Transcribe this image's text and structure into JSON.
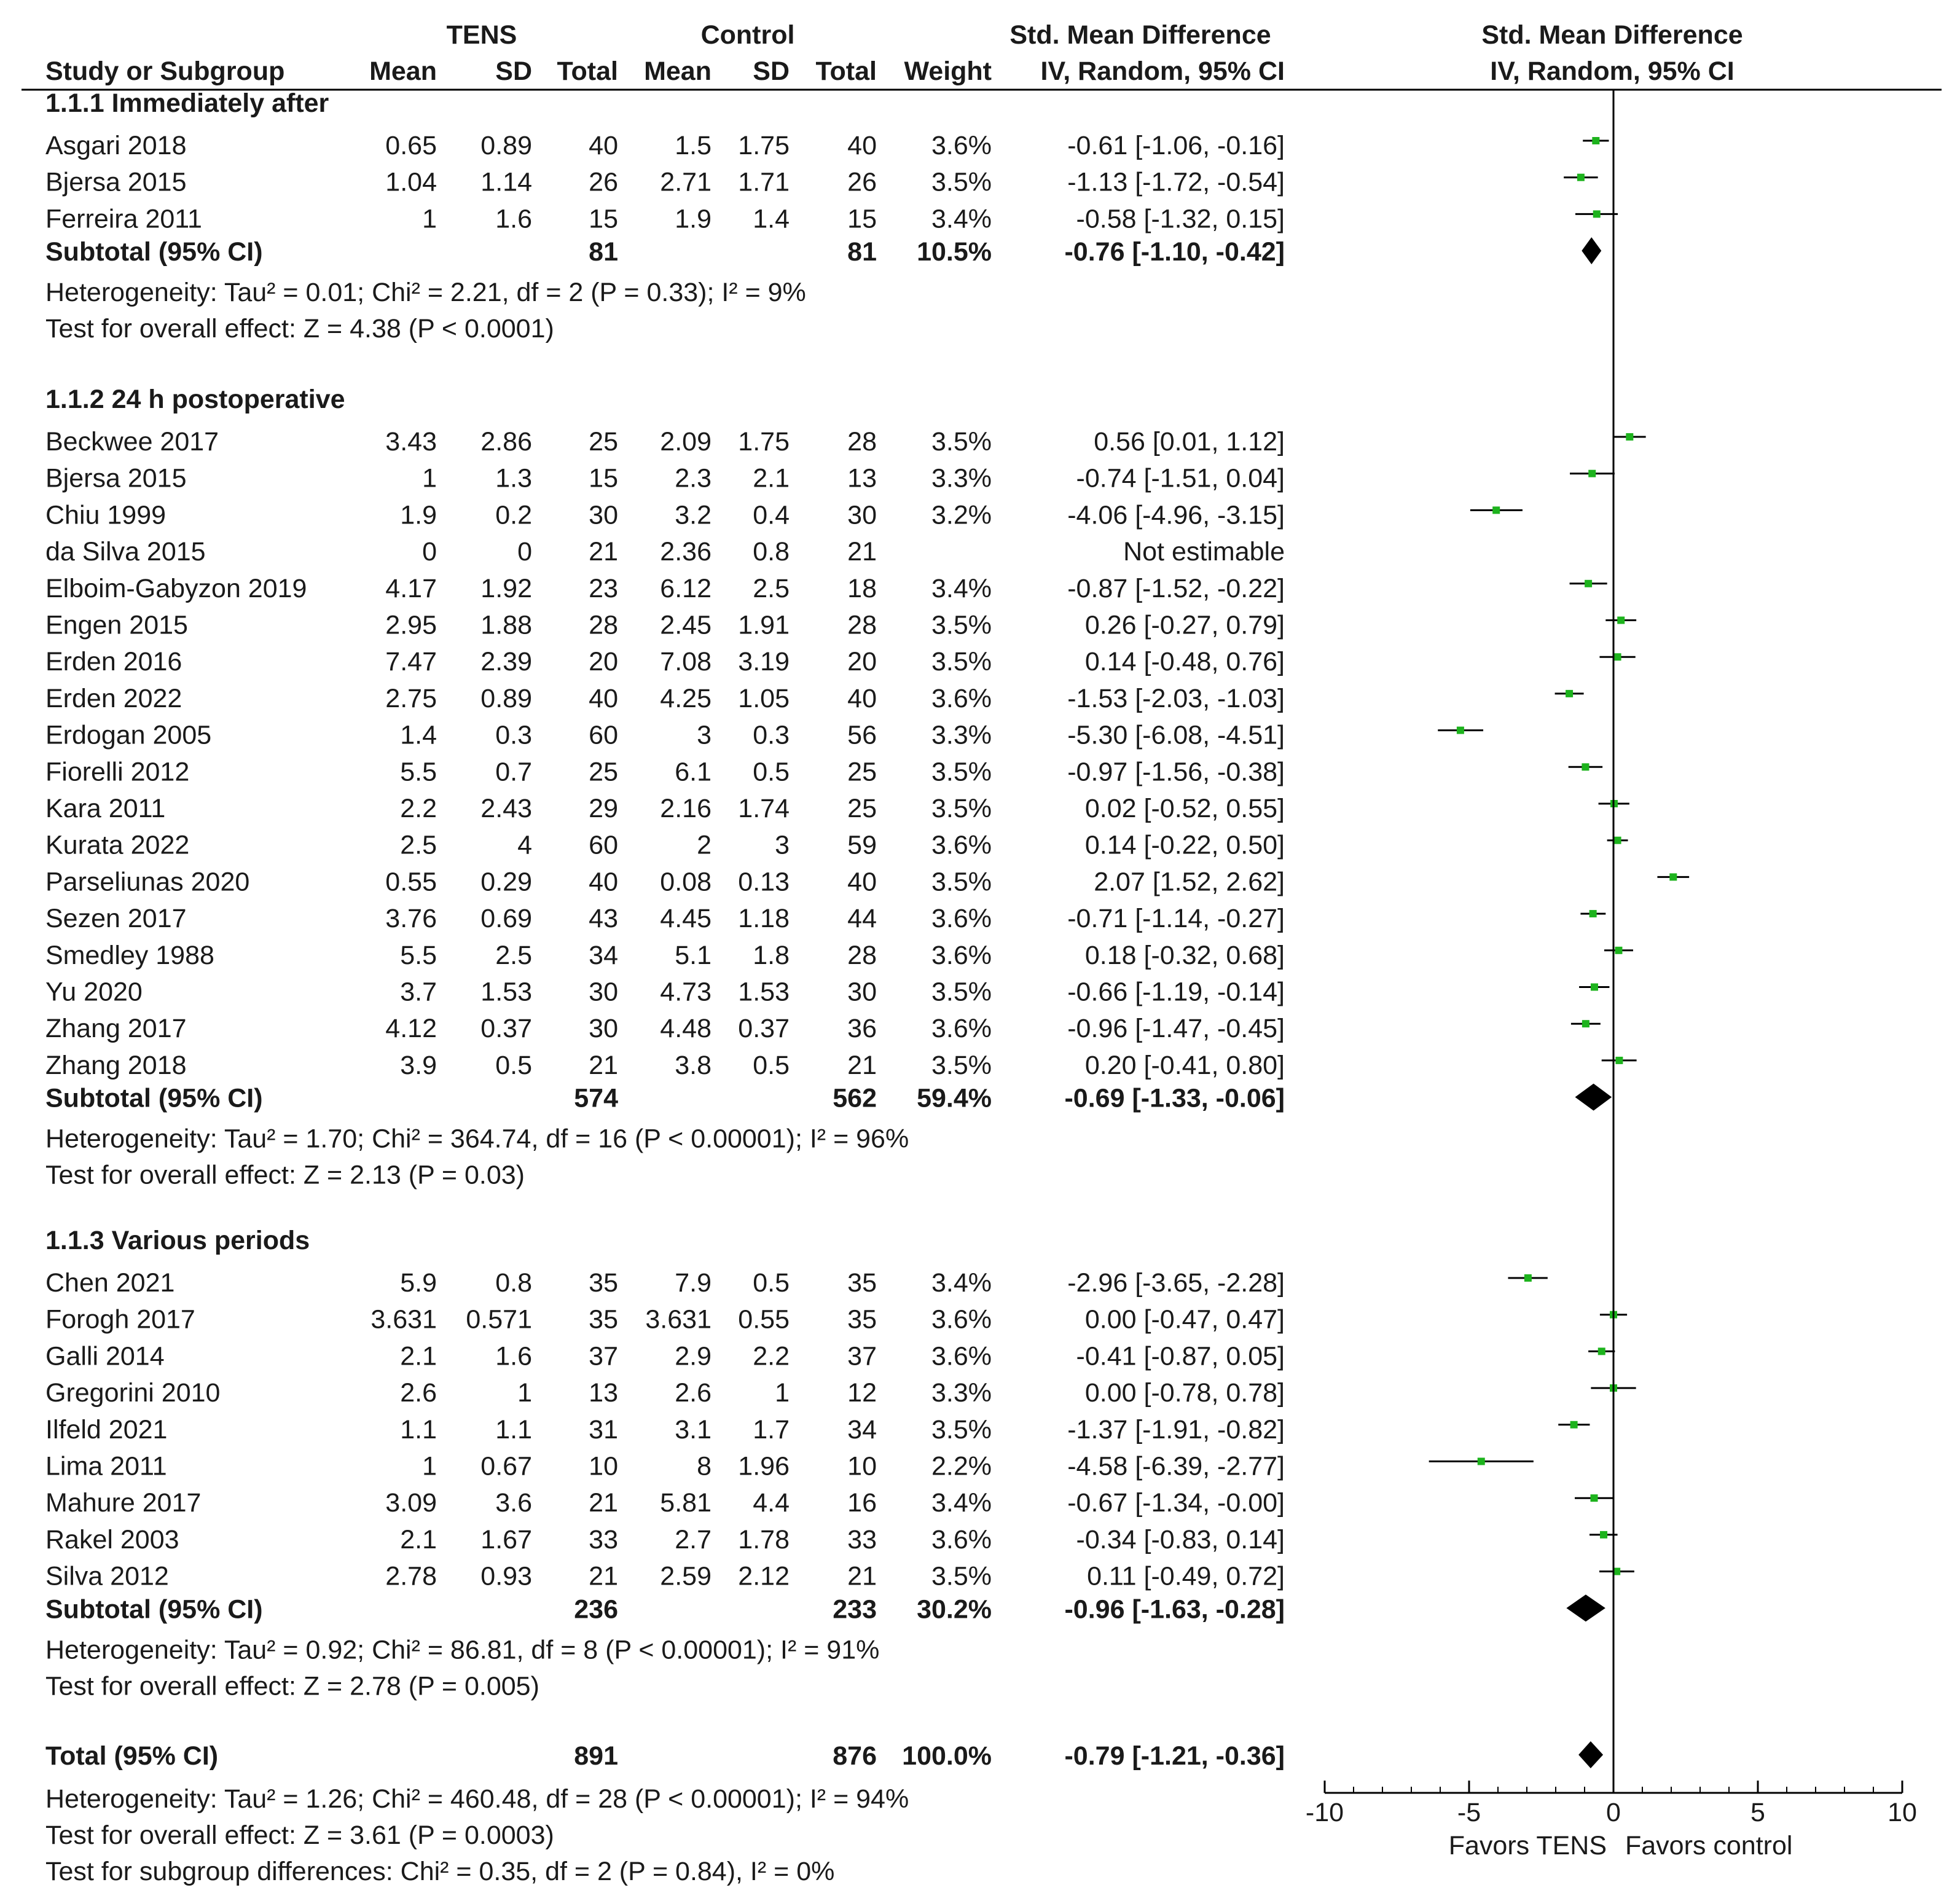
{
  "header": {
    "group1_label": "TENS",
    "group2_label": "Control",
    "effect_label": "Std. Mean Difference",
    "plot_label": "Std. Mean Difference",
    "col_study": "Study or Subgroup",
    "col_mean1": "Mean",
    "col_sd1": "SD",
    "col_total1": "Total",
    "col_mean2": "Mean",
    "col_sd2": "SD",
    "col_total2": "Total",
    "col_weight": "Weight",
    "col_ci": "IV, Random, 95% CI",
    "col_plot_ci": "IV, Random, 95% CI"
  },
  "colors": {
    "marker": "#1db31d",
    "diamond": "#000000",
    "line": "#000000"
  },
  "chart_data": {
    "type": "forest",
    "title": "Std. Mean Difference IV, Random, 95% CI",
    "xlim": [
      -10,
      10
    ],
    "xticks": [
      -10,
      -5,
      0,
      5,
      10
    ],
    "xtick_labels": [
      "-10",
      "-5",
      "0",
      "5",
      "10"
    ],
    "favors_left": "Favors TENS",
    "favors_right": "Favors control",
    "subgroups": [
      {
        "title": "1.1.1 Immediately after",
        "studies": [
          {
            "name": "Asgari 2018",
            "m1": "0.65",
            "sd1": "0.89",
            "n1": "40",
            "m2": "1.5",
            "sd2": "1.75",
            "n2": "40",
            "weight": "3.6%",
            "ci_text": "-0.61 [-1.06, -0.16]",
            "est": -0.61,
            "lo": -1.06,
            "hi": -0.16
          },
          {
            "name": "Bjersa 2015",
            "m1": "1.04",
            "sd1": "1.14",
            "n1": "26",
            "m2": "2.71",
            "sd2": "1.71",
            "n2": "26",
            "weight": "3.5%",
            "ci_text": "-1.13 [-1.72, -0.54]",
            "est": -1.13,
            "lo": -1.72,
            "hi": -0.54
          },
          {
            "name": "Ferreira 2011",
            "m1": "1",
            "sd1": "1.6",
            "n1": "15",
            "m2": "1.9",
            "sd2": "1.4",
            "n2": "15",
            "weight": "3.4%",
            "ci_text": "-0.58 [-1.32, 0.15]",
            "est": -0.58,
            "lo": -1.32,
            "hi": 0.15
          }
        ],
        "subtotal": {
          "label": "Subtotal (95% CI)",
          "n1": "81",
          "n2": "81",
          "weight": "10.5%",
          "ci_text": "-0.76 [-1.10, -0.42]",
          "est": -0.76,
          "lo": -1.1,
          "hi": -0.42
        },
        "heterogeneity": "Heterogeneity: Tau² = 0.01; Chi² = 2.21, df = 2 (P = 0.33); I² = 9%",
        "overall": "Test for overall effect: Z = 4.38 (P < 0.0001)"
      },
      {
        "title": "1.1.2 24 h postoperative",
        "studies": [
          {
            "name": "Beckwee 2017",
            "m1": "3.43",
            "sd1": "2.86",
            "n1": "25",
            "m2": "2.09",
            "sd2": "1.75",
            "n2": "28",
            "weight": "3.5%",
            "ci_text": "0.56 [0.01, 1.12]",
            "est": 0.56,
            "lo": 0.01,
            "hi": 1.12
          },
          {
            "name": "Bjersa 2015",
            "m1": "1",
            "sd1": "1.3",
            "n1": "15",
            "m2": "2.3",
            "sd2": "2.1",
            "n2": "13",
            "weight": "3.3%",
            "ci_text": "-0.74 [-1.51, 0.04]",
            "est": -0.74,
            "lo": -1.51,
            "hi": 0.04
          },
          {
            "name": "Chiu 1999",
            "m1": "1.9",
            "sd1": "0.2",
            "n1": "30",
            "m2": "3.2",
            "sd2": "0.4",
            "n2": "30",
            "weight": "3.2%",
            "ci_text": "-4.06 [-4.96, -3.15]",
            "est": -4.06,
            "lo": -4.96,
            "hi": -3.15
          },
          {
            "name": "da Silva 2015",
            "m1": "0",
            "sd1": "0",
            "n1": "21",
            "m2": "2.36",
            "sd2": "0.8",
            "n2": "21",
            "weight": "",
            "ci_text": "Not estimable",
            "est": null,
            "lo": null,
            "hi": null
          },
          {
            "name": "Elboim-Gabyzon 2019",
            "m1": "4.17",
            "sd1": "1.92",
            "n1": "23",
            "m2": "6.12",
            "sd2": "2.5",
            "n2": "18",
            "weight": "3.4%",
            "ci_text": "-0.87 [-1.52, -0.22]",
            "est": -0.87,
            "lo": -1.52,
            "hi": -0.22
          },
          {
            "name": "Engen 2015",
            "m1": "2.95",
            "sd1": "1.88",
            "n1": "28",
            "m2": "2.45",
            "sd2": "1.91",
            "n2": "28",
            "weight": "3.5%",
            "ci_text": "0.26 [-0.27, 0.79]",
            "est": 0.26,
            "lo": -0.27,
            "hi": 0.79
          },
          {
            "name": "Erden 2016",
            "m1": "7.47",
            "sd1": "2.39",
            "n1": "20",
            "m2": "7.08",
            "sd2": "3.19",
            "n2": "20",
            "weight": "3.5%",
            "ci_text": "0.14 [-0.48, 0.76]",
            "est": 0.14,
            "lo": -0.48,
            "hi": 0.76
          },
          {
            "name": "Erden 2022",
            "m1": "2.75",
            "sd1": "0.89",
            "n1": "40",
            "m2": "4.25",
            "sd2": "1.05",
            "n2": "40",
            "weight": "3.6%",
            "ci_text": "-1.53 [-2.03, -1.03]",
            "est": -1.53,
            "lo": -2.03,
            "hi": -1.03
          },
          {
            "name": "Erdogan 2005",
            "m1": "1.4",
            "sd1": "0.3",
            "n1": "60",
            "m2": "3",
            "sd2": "0.3",
            "n2": "56",
            "weight": "3.3%",
            "ci_text": "-5.30 [-6.08, -4.51]",
            "est": -5.3,
            "lo": -6.08,
            "hi": -4.51
          },
          {
            "name": "Fiorelli 2012",
            "m1": "5.5",
            "sd1": "0.7",
            "n1": "25",
            "m2": "6.1",
            "sd2": "0.5",
            "n2": "25",
            "weight": "3.5%",
            "ci_text": "-0.97 [-1.56, -0.38]",
            "est": -0.97,
            "lo": -1.56,
            "hi": -0.38
          },
          {
            "name": "Kara 2011",
            "m1": "2.2",
            "sd1": "2.43",
            "n1": "29",
            "m2": "2.16",
            "sd2": "1.74",
            "n2": "25",
            "weight": "3.5%",
            "ci_text": "0.02 [-0.52, 0.55]",
            "est": 0.02,
            "lo": -0.52,
            "hi": 0.55
          },
          {
            "name": "Kurata 2022",
            "m1": "2.5",
            "sd1": "4",
            "n1": "60",
            "m2": "2",
            "sd2": "3",
            "n2": "59",
            "weight": "3.6%",
            "ci_text": "0.14 [-0.22, 0.50]",
            "est": 0.14,
            "lo": -0.22,
            "hi": 0.5
          },
          {
            "name": "Parseliunas 2020",
            "m1": "0.55",
            "sd1": "0.29",
            "n1": "40",
            "m2": "0.08",
            "sd2": "0.13",
            "n2": "40",
            "weight": "3.5%",
            "ci_text": "2.07 [1.52, 2.62]",
            "est": 2.07,
            "lo": 1.52,
            "hi": 2.62
          },
          {
            "name": "Sezen 2017",
            "m1": "3.76",
            "sd1": "0.69",
            "n1": "43",
            "m2": "4.45",
            "sd2": "1.18",
            "n2": "44",
            "weight": "3.6%",
            "ci_text": "-0.71 [-1.14, -0.27]",
            "est": -0.71,
            "lo": -1.14,
            "hi": -0.27
          },
          {
            "name": "Smedley 1988",
            "m1": "5.5",
            "sd1": "2.5",
            "n1": "34",
            "m2": "5.1",
            "sd2": "1.8",
            "n2": "28",
            "weight": "3.6%",
            "ci_text": "0.18 [-0.32, 0.68]",
            "est": 0.18,
            "lo": -0.32,
            "hi": 0.68
          },
          {
            "name": "Yu 2020",
            "m1": "3.7",
            "sd1": "1.53",
            "n1": "30",
            "m2": "4.73",
            "sd2": "1.53",
            "n2": "30",
            "weight": "3.5%",
            "ci_text": "-0.66 [-1.19, -0.14]",
            "est": -0.66,
            "lo": -1.19,
            "hi": -0.14
          },
          {
            "name": "Zhang 2017",
            "m1": "4.12",
            "sd1": "0.37",
            "n1": "30",
            "m2": "4.48",
            "sd2": "0.37",
            "n2": "36",
            "weight": "3.6%",
            "ci_text": "-0.96 [-1.47, -0.45]",
            "est": -0.96,
            "lo": -1.47,
            "hi": -0.45
          },
          {
            "name": "Zhang 2018",
            "m1": "3.9",
            "sd1": "0.5",
            "n1": "21",
            "m2": "3.8",
            "sd2": "0.5",
            "n2": "21",
            "weight": "3.5%",
            "ci_text": "0.20 [-0.41, 0.80]",
            "est": 0.2,
            "lo": -0.41,
            "hi": 0.8
          }
        ],
        "subtotal": {
          "label": "Subtotal (95% CI)",
          "n1": "574",
          "n2": "562",
          "weight": "59.4%",
          "ci_text": "-0.69 [-1.33, -0.06]",
          "est": -0.69,
          "lo": -1.33,
          "hi": -0.06
        },
        "heterogeneity": "Heterogeneity: Tau² = 1.70; Chi² = 364.74, df = 16 (P < 0.00001); I² = 96%",
        "overall": "Test for overall effect: Z = 2.13 (P = 0.03)"
      },
      {
        "title": "1.1.3 Various periods",
        "studies": [
          {
            "name": "Chen 2021",
            "m1": "5.9",
            "sd1": "0.8",
            "n1": "35",
            "m2": "7.9",
            "sd2": "0.5",
            "n2": "35",
            "weight": "3.4%",
            "ci_text": "-2.96 [-3.65, -2.28]",
            "est": -2.96,
            "lo": -3.65,
            "hi": -2.28
          },
          {
            "name": "Forogh 2017",
            "m1": "3.631",
            "sd1": "0.571",
            "n1": "35",
            "m2": "3.631",
            "sd2": "0.55",
            "n2": "35",
            "weight": "3.6%",
            "ci_text": "0.00 [-0.47, 0.47]",
            "est": 0.0,
            "lo": -0.47,
            "hi": 0.47
          },
          {
            "name": "Galli 2014",
            "m1": "2.1",
            "sd1": "1.6",
            "n1": "37",
            "m2": "2.9",
            "sd2": "2.2",
            "n2": "37",
            "weight": "3.6%",
            "ci_text": "-0.41 [-0.87, 0.05]",
            "est": -0.41,
            "lo": -0.87,
            "hi": 0.05
          },
          {
            "name": "Gregorini 2010",
            "m1": "2.6",
            "sd1": "1",
            "n1": "13",
            "m2": "2.6",
            "sd2": "1",
            "n2": "12",
            "weight": "3.3%",
            "ci_text": "0.00 [-0.78, 0.78]",
            "est": 0.0,
            "lo": -0.78,
            "hi": 0.78
          },
          {
            "name": "Ilfeld 2021",
            "m1": "1.1",
            "sd1": "1.1",
            "n1": "31",
            "m2": "3.1",
            "sd2": "1.7",
            "n2": "34",
            "weight": "3.5%",
            "ci_text": "-1.37 [-1.91, -0.82]",
            "est": -1.37,
            "lo": -1.91,
            "hi": -0.82
          },
          {
            "name": "Lima 2011",
            "m1": "1",
            "sd1": "0.67",
            "n1": "10",
            "m2": "8",
            "sd2": "1.96",
            "n2": "10",
            "weight": "2.2%",
            "ci_text": "-4.58 [-6.39, -2.77]",
            "est": -4.58,
            "lo": -6.39,
            "hi": -2.77
          },
          {
            "name": "Mahure 2017",
            "m1": "3.09",
            "sd1": "3.6",
            "n1": "21",
            "m2": "5.81",
            "sd2": "4.4",
            "n2": "16",
            "weight": "3.4%",
            "ci_text": "-0.67 [-1.34, -0.00]",
            "est": -0.67,
            "lo": -1.34,
            "hi": -0.0
          },
          {
            "name": "Rakel 2003",
            "m1": "2.1",
            "sd1": "1.67",
            "n1": "33",
            "m2": "2.7",
            "sd2": "1.78",
            "n2": "33",
            "weight": "3.6%",
            "ci_text": "-0.34 [-0.83, 0.14]",
            "est": -0.34,
            "lo": -0.83,
            "hi": 0.14
          },
          {
            "name": "Silva 2012",
            "m1": "2.78",
            "sd1": "0.93",
            "n1": "21",
            "m2": "2.59",
            "sd2": "2.12",
            "n2": "21",
            "weight": "3.5%",
            "ci_text": "0.11 [-0.49, 0.72]",
            "est": 0.11,
            "lo": -0.49,
            "hi": 0.72
          }
        ],
        "subtotal": {
          "label": "Subtotal (95% CI)",
          "n1": "236",
          "n2": "233",
          "weight": "30.2%",
          "ci_text": "-0.96 [-1.63, -0.28]",
          "est": -0.96,
          "lo": -1.63,
          "hi": -0.28
        },
        "heterogeneity": "Heterogeneity: Tau² = 0.92; Chi² = 86.81, df = 8 (P < 0.00001); I² = 91%",
        "overall": "Test for overall effect: Z = 2.78 (P = 0.005)"
      }
    ],
    "total": {
      "label": "Total (95% CI)",
      "n1": "891",
      "n2": "876",
      "weight": "100.0%",
      "ci_text": "-0.79 [-1.21, -0.36]",
      "est": -0.79,
      "lo": -1.21,
      "hi": -0.36
    },
    "total_heterogeneity": "Heterogeneity: Tau² = 1.26; Chi² = 460.48, df = 28 (P < 0.00001); I² = 94%",
    "total_overall": "Test for overall effect: Z = 3.61 (P = 0.0003)",
    "subgroup_differences": "Test for subgroup differences: Chi² = 0.35, df = 2 (P = 0.84), I² = 0%"
  }
}
